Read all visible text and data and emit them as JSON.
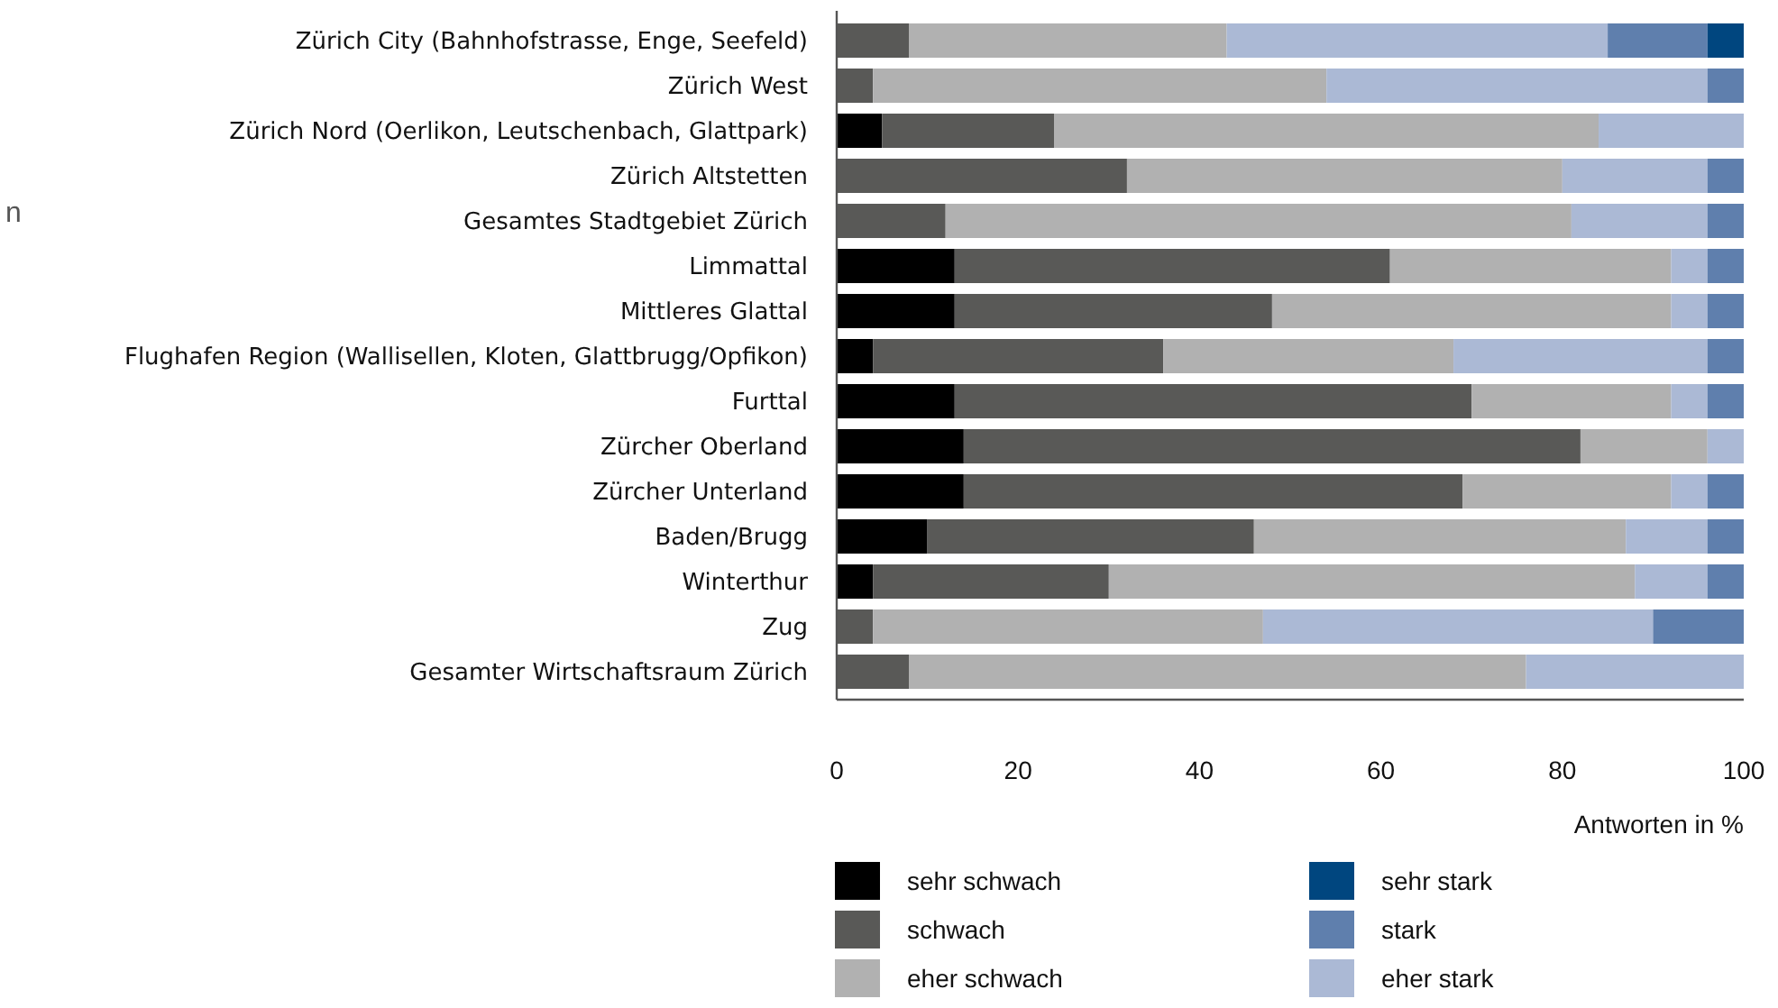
{
  "chart_data": {
    "type": "bar",
    "orientation": "horizontal",
    "stacked": true,
    "categories": [
      "Zürich City (Bahnhofstrasse, Enge, Seefeld)",
      "Zürich West",
      "Zürich Nord (Oerlikon, Leutschenbach, Glattpark)",
      "Zürich Altstetten",
      "Gesamtes Stadtgebiet Zürich",
      "Limmattal",
      "Mittleres Glattal",
      "Flughafen Region (Wallisellen, Kloten, Glattbrugg/Opfikon)",
      "Furttal",
      "Zürcher Oberland",
      "Zürcher Unterland",
      "Baden/Brugg",
      "Winterthur",
      "Zug",
      "Gesamter Wirtschaftsraum Zürich"
    ],
    "series": [
      {
        "name": "sehr schwach",
        "color": "#000000",
        "values": [
          0,
          0,
          5,
          0,
          0,
          13,
          13,
          4,
          13,
          14,
          14,
          10,
          4,
          0,
          0
        ]
      },
      {
        "name": "schwach",
        "color": "#595957",
        "values": [
          8,
          4,
          19,
          32,
          12,
          48,
          35,
          32,
          57,
          68,
          55,
          36,
          26,
          4,
          8
        ]
      },
      {
        "name": "eher schwach",
        "color": "#b1b1b1",
        "values": [
          35,
          50,
          60,
          48,
          69,
          31,
          44,
          32,
          22,
          14,
          23,
          41,
          58,
          43,
          68
        ]
      },
      {
        "name": "eher stark",
        "color": "#abb9d5",
        "values": [
          42,
          42,
          16,
          16,
          15,
          4,
          4,
          28,
          4,
          4,
          4,
          9,
          8,
          43,
          24
        ]
      },
      {
        "name": "stark",
        "color": "#5f7fad",
        "values": [
          11,
          4,
          0,
          4,
          4,
          4,
          4,
          4,
          4,
          0,
          4,
          4,
          4,
          10,
          0
        ]
      },
      {
        "name": "sehr stark",
        "color": "#00467f",
        "values": [
          4,
          0,
          0,
          0,
          0,
          0,
          0,
          0,
          0,
          0,
          0,
          0,
          0,
          0,
          0
        ]
      }
    ],
    "xlim": [
      0,
      100
    ],
    "xticks": [
      0,
      20,
      40,
      60,
      80,
      100
    ],
    "xlabel": "Antworten in %",
    "legend": "bottom",
    "grid": false,
    "annotations": [
      "n"
    ]
  }
}
